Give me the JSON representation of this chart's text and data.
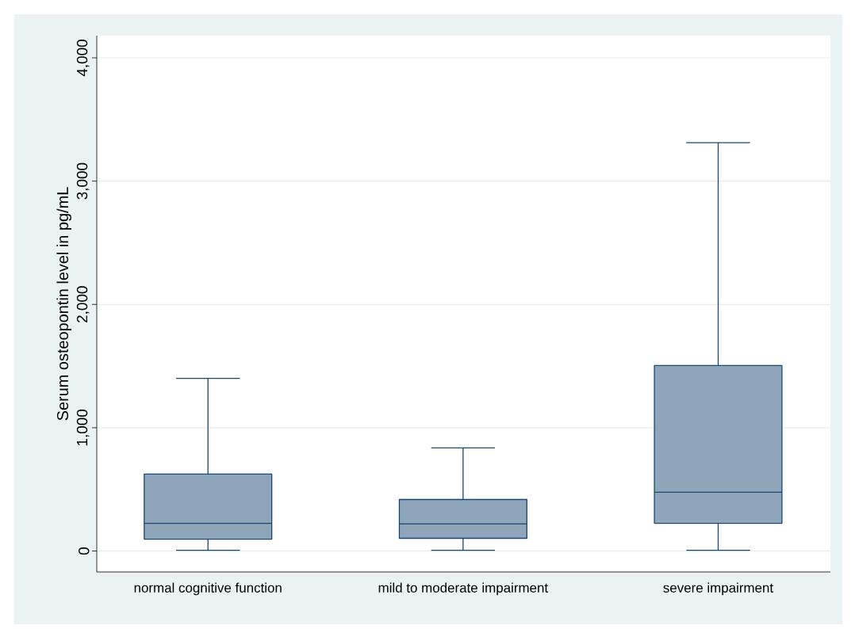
{
  "chart_data": {
    "type": "box",
    "ylabel": "Serum osteopontin level in pg/mL",
    "categories": [
      "normal cognitive function",
      "mild to moderate impairment",
      "severe impairment"
    ],
    "boxes": [
      {
        "low": 6,
        "q1": 96,
        "median": 225,
        "q3": 624,
        "high": 1400
      },
      {
        "low": 6,
        "q1": 103,
        "median": 219,
        "q3": 418,
        "high": 836
      },
      {
        "low": 6,
        "q1": 225,
        "median": 476,
        "q3": 1505,
        "high": 3312
      }
    ],
    "color": "#1a476f",
    "colors": [
      "#8fa5ba",
      "#8fa5ba",
      "#8fa5ba"
    ],
    "ylim": [
      -170,
      4180
    ],
    "yticks": [
      0,
      {
        "value": 1000,
        "label": "1,000"
      },
      {
        "value": 2000,
        "label": "2,000"
      },
      {
        "value": 3000,
        "label": "3,000"
      },
      {
        "value": 4000,
        "label": "4,000"
      }
    ],
    "grid": "y"
  }
}
